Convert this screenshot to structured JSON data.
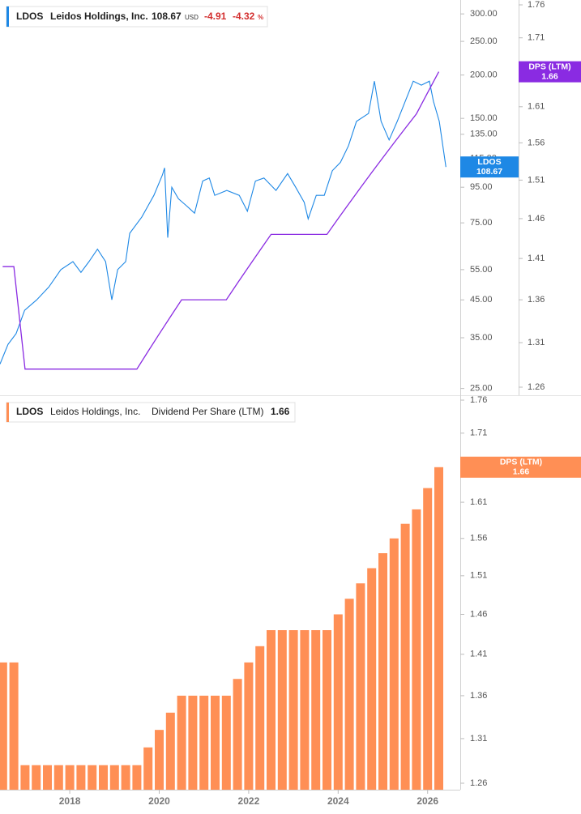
{
  "chart_data": [
    {
      "type": "line",
      "legend": {
        "symbol": "LDOS",
        "name": "Leidos Holdings, Inc.",
        "price": "108.67",
        "currency": "USD",
        "change": "-4.91",
        "change_pct": "-4.32",
        "pct_unit": "%"
      },
      "series": [
        {
          "name": "LDOS",
          "color": "#1e88e5",
          "x": [
            2016.44,
            2016.62,
            2016.8,
            2016.99,
            2017.26,
            2017.53,
            2017.8,
            2018.07,
            2018.25,
            2018.43,
            2018.62,
            2018.8,
            2018.94,
            2019.07,
            2019.25,
            2019.34,
            2019.61,
            2019.88,
            2020.07,
            2020.12,
            2020.19,
            2020.28,
            2020.43,
            2020.61,
            2020.79,
            2020.97,
            2021.12,
            2021.24,
            2021.51,
            2021.79,
            2021.97,
            2022.15,
            2022.34,
            2022.61,
            2022.87,
            2023.05,
            2023.24,
            2023.33,
            2023.51,
            2023.69,
            2023.87,
            2024.05,
            2024.23,
            2024.41,
            2024.68,
            2024.81,
            2024.96,
            2025.14,
            2025.32,
            2025.5,
            2025.68,
            2025.86,
            2026.04,
            2026.13,
            2026.26,
            2026.41
          ],
          "values": [
            29.4,
            33.5,
            36,
            42,
            45,
            49,
            55,
            58,
            54,
            58,
            63,
            58,
            45,
            55,
            58,
            70,
            78,
            90,
            103,
            108,
            68,
            95,
            88,
            84,
            80,
            99,
            101,
            90,
            93,
            90,
            81,
            99,
            101,
            93,
            104,
            95,
            86,
            77,
            90,
            90,
            106,
            112,
            125,
            147,
            155,
            192,
            147,
            130,
            147,
            168,
            192,
            187,
            192,
            168,
            147,
            108.67
          ]
        },
        {
          "name": "DPS (LTM)",
          "color": "#8a2be2",
          "axis": "y2",
          "x": [
            2016.5,
            2016.75,
            2017.0,
            2017.25,
            2017.5,
            2017.75,
            2018.0,
            2018.25,
            2018.5,
            2018.75,
            2019.0,
            2019.25,
            2019.5,
            2019.75,
            2020.0,
            2020.25,
            2020.5,
            2020.75,
            2021.0,
            2021.25,
            2021.5,
            2021.75,
            2022.0,
            2022.25,
            2022.5,
            2022.75,
            2023.0,
            2023.25,
            2023.5,
            2023.75,
            2024.0,
            2024.25,
            2024.5,
            2024.75,
            2025.0,
            2025.25,
            2025.5,
            2025.75,
            2026.0,
            2026.25
          ],
          "values": [
            1.4,
            1.4,
            1.28,
            1.28,
            1.28,
            1.28,
            1.28,
            1.28,
            1.28,
            1.28,
            1.28,
            1.28,
            1.28,
            1.3,
            1.32,
            1.34,
            1.36,
            1.36,
            1.36,
            1.36,
            1.36,
            1.38,
            1.4,
            1.42,
            1.44,
            1.44,
            1.44,
            1.44,
            1.44,
            1.44,
            1.46,
            1.48,
            1.5,
            1.52,
            1.54,
            1.56,
            1.58,
            1.6,
            1.63,
            1.66
          ]
        }
      ],
      "log_scale": true,
      "ylim": [
        23.9,
        329
      ],
      "yticks": [
        {
          "value": 25,
          "label": "25.00"
        },
        {
          "value": 35,
          "label": "35.00"
        },
        {
          "value": 45,
          "label": "45.00"
        },
        {
          "value": 55,
          "label": "55.00"
        },
        {
          "value": 75,
          "label": "75.00"
        },
        {
          "value": 95,
          "label": "95.00"
        },
        {
          "value": 115,
          "label": "115.00"
        },
        {
          "value": 135,
          "label": "135.00"
        },
        {
          "value": 150,
          "label": "150.00"
        },
        {
          "value": 200,
          "label": "200.00"
        },
        {
          "value": 250,
          "label": "250.00"
        },
        {
          "value": 300,
          "label": "300.00"
        }
      ],
      "y2lim": [
        1.2511,
        1.7675
      ],
      "y2ticks": [
        1.26,
        1.31,
        1.36,
        1.41,
        1.46,
        1.51,
        1.56,
        1.61,
        1.71,
        1.76
      ]
    },
    {
      "type": "bar",
      "legend": {
        "symbol": "LDOS",
        "name": "Leidos Holdings, Inc.",
        "metric": "Dividend Per Share (LTM)"
      },
      "series": [
        {
          "name": "DPS (LTM)",
          "color": "#ff8f55",
          "x": [
            2016.5,
            2016.75,
            2017.0,
            2017.25,
            2017.5,
            2017.75,
            2018.0,
            2018.25,
            2018.5,
            2018.75,
            2019.0,
            2019.25,
            2019.5,
            2019.75,
            2020.0,
            2020.25,
            2020.5,
            2020.75,
            2021.0,
            2021.25,
            2021.5,
            2021.75,
            2022.0,
            2022.25,
            2022.5,
            2022.75,
            2023.0,
            2023.25,
            2023.5,
            2023.75,
            2024.0,
            2024.25,
            2024.5,
            2024.75,
            2025.0,
            2025.25,
            2025.5,
            2025.75,
            2026.0,
            2026.25
          ],
          "values": [
            1.4,
            1.4,
            1.28,
            1.28,
            1.28,
            1.28,
            1.28,
            1.28,
            1.28,
            1.28,
            1.28,
            1.28,
            1.28,
            1.3,
            1.32,
            1.34,
            1.36,
            1.36,
            1.36,
            1.36,
            1.36,
            1.38,
            1.4,
            1.42,
            1.44,
            1.44,
            1.44,
            1.44,
            1.44,
            1.44,
            1.46,
            1.48,
            1.5,
            1.52,
            1.54,
            1.56,
            1.58,
            1.6,
            1.63,
            1.66
          ]
        }
      ],
      "log_scale": true,
      "ylim": [
        1.2529,
        1.765
      ],
      "yticks": [
        1.26,
        1.31,
        1.36,
        1.41,
        1.46,
        1.51,
        1.56,
        1.61,
        1.66,
        1.71,
        1.76
      ],
      "xlim": [
        2016.44,
        2026.73
      ],
      "xticks": [
        2018,
        2020,
        2022,
        2024,
        2026
      ]
    }
  ]
}
